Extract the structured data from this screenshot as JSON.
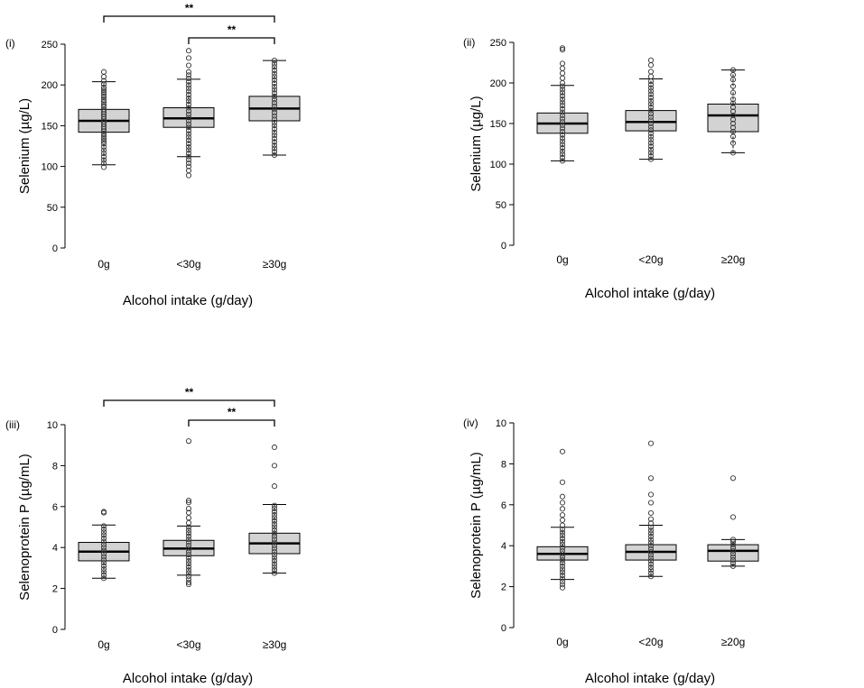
{
  "chart_data": [
    {
      "type": "box",
      "panel_label": "(i)",
      "ylabel": "Selenium (µg/L)",
      "xlabel": "Alcohol intake (g/day)",
      "ylim": [
        0,
        250
      ],
      "yticks": [
        0,
        50,
        100,
        150,
        200,
        250
      ],
      "categories": [
        "0g",
        "<30g",
        "≥30g"
      ],
      "boxes": [
        {
          "whisker_low": 102,
          "q1": 142,
          "median": 156,
          "q3": 170,
          "whisker_high": 204,
          "points": [
            99,
            104,
            108,
            112,
            116,
            120,
            124,
            128,
            131,
            134,
            137,
            140,
            143,
            146,
            149,
            152,
            155,
            158,
            161,
            164,
            167,
            170,
            173,
            176,
            179,
            182,
            185,
            188,
            191,
            194,
            197,
            201,
            205,
            210,
            216
          ]
        },
        {
          "whisker_low": 112,
          "q1": 148,
          "median": 159,
          "q3": 172,
          "whisker_high": 207,
          "points": [
            89,
            95,
            100,
            104,
            108,
            112,
            116,
            120,
            124,
            128,
            132,
            136,
            140,
            144,
            148,
            152,
            156,
            160,
            164,
            168,
            172,
            176,
            180,
            184,
            188,
            192,
            196,
            200,
            204,
            208,
            212,
            216,
            224,
            233,
            242
          ]
        },
        {
          "whisker_low": 114,
          "q1": 156,
          "median": 171,
          "q3": 186,
          "whisker_high": 230,
          "points": [
            114,
            118,
            122,
            126,
            130,
            134,
            138,
            142,
            146,
            150,
            154,
            158,
            162,
            166,
            170,
            174,
            178,
            182,
            186,
            190,
            194,
            198,
            202,
            206,
            210,
            214,
            218,
            222,
            226,
            230
          ]
        }
      ],
      "significance": [
        {
          "from": 0,
          "to": 2,
          "label": "**"
        },
        {
          "from": 1,
          "to": 2,
          "label": "**"
        }
      ]
    },
    {
      "type": "box",
      "panel_label": "(ii)",
      "ylabel": "Selenium (µg/L)",
      "xlabel": "Alcohol intake (g/day)",
      "ylim": [
        0,
        250
      ],
      "yticks": [
        0,
        50,
        100,
        150,
        200,
        250
      ],
      "categories": [
        "0g",
        "<20g",
        "≥20g"
      ],
      "boxes": [
        {
          "whisker_low": 104,
          "q1": 138,
          "median": 150,
          "q3": 163,
          "whisker_high": 197,
          "points": [
            104,
            108,
            112,
            116,
            120,
            124,
            128,
            132,
            136,
            140,
            144,
            148,
            152,
            156,
            160,
            164,
            168,
            172,
            176,
            180,
            184,
            188,
            192,
            196,
            200,
            206,
            212,
            218,
            224,
            241,
            243
          ]
        },
        {
          "whisker_low": 106,
          "q1": 141,
          "median": 152,
          "q3": 166,
          "whisker_high": 205,
          "points": [
            106,
            110,
            114,
            118,
            122,
            126,
            130,
            134,
            138,
            142,
            146,
            150,
            154,
            158,
            162,
            166,
            170,
            174,
            178,
            182,
            186,
            190,
            194,
            198,
            202,
            208,
            214,
            222,
            228
          ]
        },
        {
          "whisker_low": 114,
          "q1": 140,
          "median": 160,
          "q3": 174,
          "whisker_high": 216,
          "points": [
            114,
            126,
            134,
            140,
            145,
            150,
            155,
            160,
            165,
            170,
            175,
            180,
            188,
            196,
            204,
            210,
            216
          ]
        }
      ],
      "significance": []
    },
    {
      "type": "box",
      "panel_label": "(iii)",
      "ylabel": "Selenoprotein P (µg/mL)",
      "xlabel": "Alcohol intake (g/day)",
      "ylim": [
        0,
        10
      ],
      "yticks": [
        0,
        2,
        4,
        6,
        8,
        10
      ],
      "categories": [
        "0g",
        "<30g",
        "≥30g"
      ],
      "boxes": [
        {
          "whisker_low": 2.5,
          "q1": 3.35,
          "median": 3.8,
          "q3": 4.25,
          "whisker_high": 5.1,
          "points": [
            2.5,
            2.65,
            2.8,
            2.95,
            3.1,
            3.25,
            3.4,
            3.55,
            3.7,
            3.85,
            4.0,
            4.15,
            4.3,
            4.45,
            4.6,
            4.75,
            4.9,
            5.05,
            5.7,
            5.75
          ]
        },
        {
          "whisker_low": 2.65,
          "q1": 3.6,
          "median": 3.95,
          "q3": 4.35,
          "whisker_high": 5.05,
          "points": [
            2.2,
            2.3,
            2.45,
            2.6,
            2.75,
            2.9,
            3.05,
            3.2,
            3.35,
            3.5,
            3.65,
            3.8,
            3.95,
            4.1,
            4.25,
            4.4,
            4.55,
            4.7,
            4.85,
            5.0,
            5.2,
            5.45,
            5.7,
            5.9,
            6.2,
            6.3,
            9.2
          ]
        },
        {
          "whisker_low": 2.75,
          "q1": 3.7,
          "median": 4.2,
          "q3": 4.7,
          "whisker_high": 6.1,
          "points": [
            2.75,
            2.9,
            3.05,
            3.2,
            3.35,
            3.5,
            3.65,
            3.8,
            3.95,
            4.1,
            4.25,
            4.4,
            4.55,
            4.7,
            4.85,
            5.0,
            5.15,
            5.3,
            5.45,
            5.6,
            5.75,
            5.9,
            6.05,
            7.0,
            8.0,
            8.9
          ]
        }
      ],
      "significance": [
        {
          "from": 0,
          "to": 2,
          "label": "**"
        },
        {
          "from": 1,
          "to": 2,
          "label": "**"
        }
      ]
    },
    {
      "type": "box",
      "panel_label": "(iv)",
      "ylabel": "Selenoprotein P (µg/mL)",
      "xlabel": "Alcohol intake (g/day)",
      "ylim": [
        0,
        10
      ],
      "yticks": [
        0,
        2,
        4,
        6,
        8,
        10
      ],
      "categories": [
        "0g",
        "<20g",
        "≥20g"
      ],
      "boxes": [
        {
          "whisker_low": 2.35,
          "q1": 3.3,
          "median": 3.6,
          "q3": 3.95,
          "whisker_high": 4.9,
          "points": [
            1.95,
            2.1,
            2.25,
            2.4,
            2.55,
            2.7,
            2.85,
            3.0,
            3.15,
            3.3,
            3.45,
            3.6,
            3.75,
            3.9,
            4.05,
            4.2,
            4.35,
            4.5,
            4.65,
            4.8,
            5.0,
            5.25,
            5.5,
            5.8,
            6.1,
            6.4,
            7.1,
            8.6
          ]
        },
        {
          "whisker_low": 2.5,
          "q1": 3.3,
          "median": 3.7,
          "q3": 4.05,
          "whisker_high": 5.0,
          "points": [
            2.5,
            2.65,
            2.8,
            2.95,
            3.1,
            3.25,
            3.4,
            3.55,
            3.7,
            3.85,
            4.0,
            4.15,
            4.3,
            4.45,
            4.6,
            4.75,
            4.9,
            5.1,
            5.3,
            5.6,
            6.1,
            6.5,
            7.3,
            9.0
          ]
        },
        {
          "whisker_low": 3.0,
          "q1": 3.25,
          "median": 3.75,
          "q3": 4.05,
          "whisker_high": 4.3,
          "points": [
            3.0,
            3.15,
            3.3,
            3.45,
            3.6,
            3.75,
            3.9,
            4.05,
            4.2,
            4.3,
            5.4,
            7.3
          ]
        }
      ],
      "significance": []
    }
  ]
}
